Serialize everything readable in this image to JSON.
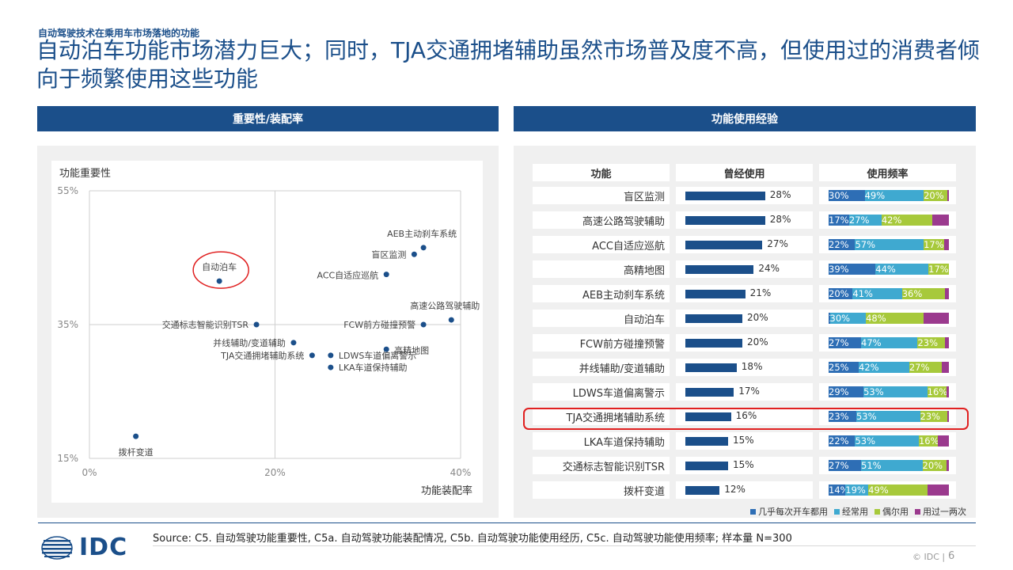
{
  "kicker": "自动驾驶技术在乘用车市场落地的功能",
  "title": "自动泊车功能市场潜力巨大；同时，TJA交通拥堵辅助虽然市场普及度不高，但使用过的消费者倾向于频繁使用这些功能",
  "left_panel": {
    "header": "重要性/装配率"
  },
  "right_panel": {
    "header": "功能使用经验"
  },
  "colors": {
    "brand": "#1b4f8a",
    "seg1": "#2e6eb5",
    "seg2": "#3fa9d0",
    "seg3": "#a7c93b",
    "seg4": "#9b3a8e",
    "highlight": "#e02020"
  },
  "chart_data": [
    {
      "type": "scatter",
      "title": "",
      "ylabel": "功能重要性",
      "xlabel": "功能装配率",
      "xlim": [
        0,
        40
      ],
      "ylim": [
        15,
        55
      ],
      "x_ticks": [
        "0%",
        "20%",
        "40%"
      ],
      "y_ticks": [
        "55%",
        "35%",
        "15%"
      ],
      "quadrant_lines": {
        "x": 20,
        "y": 35
      },
      "points": [
        {
          "label": "AEB主动刹车系统",
          "x": 36,
          "y": 46.5
        },
        {
          "label": "盲区监测",
          "x": 35,
          "y": 45.5
        },
        {
          "label": "ACC自适应巡航",
          "x": 32,
          "y": 42.5
        },
        {
          "label": "自动泊车",
          "x": 14,
          "y": 41.5,
          "highlighted": true
        },
        {
          "label": "高速公路驾驶辅助",
          "x": 39,
          "y": 35.7
        },
        {
          "label": "FCW前方碰撞预警",
          "x": 36,
          "y": 35
        },
        {
          "label": "交通标志智能识别TSR",
          "x": 18,
          "y": 35
        },
        {
          "label": "并线辅助/变道辅助",
          "x": 22,
          "y": 32.3
        },
        {
          "label": "高精地图",
          "x": 32,
          "y": 31.3
        },
        {
          "label": "TJA交通拥堵辅助系统",
          "x": 24,
          "y": 30.4
        },
        {
          "label": "LDWS车道偏离警示",
          "x": 26,
          "y": 30.4
        },
        {
          "label": "LKA车道保持辅助",
          "x": 26,
          "y": 28.6
        },
        {
          "label": "拨杆变道",
          "x": 5,
          "y": 18.3
        }
      ]
    },
    {
      "type": "table",
      "columns": [
        "功能",
        "曾经使用",
        "使用频率"
      ],
      "legend": [
        "几乎每次开车都用",
        "经常用",
        "偶尔用",
        "用过一两次"
      ],
      "rows": [
        {
          "name": "盲区监测",
          "used": 28,
          "used_label": "28%",
          "freq": [
            30,
            49,
            20,
            1
          ],
          "freq_labels": [
            "30%",
            "49%",
            "20%",
            ""
          ]
        },
        {
          "name": "高速公路驾驶辅助",
          "used": 28,
          "used_label": "28%",
          "freq": [
            17,
            27,
            42,
            14
          ],
          "freq_labels": [
            "17%",
            "27%",
            "42%",
            ""
          ]
        },
        {
          "name": "ACC自适应巡航",
          "used": 27,
          "used_label": "27%",
          "freq": [
            22,
            57,
            17,
            4
          ],
          "freq_labels": [
            "22%",
            "57%",
            "17%",
            ""
          ]
        },
        {
          "name": "高精地图",
          "used": 24,
          "used_label": "24%",
          "freq": [
            39,
            44,
            17,
            0
          ],
          "freq_labels": [
            "39%",
            "44%",
            "17%",
            ""
          ]
        },
        {
          "name": "AEB主动刹车系统",
          "used": 21,
          "used_label": "21%",
          "freq": [
            20,
            41,
            36,
            3
          ],
          "freq_labels": [
            "20%",
            "41%",
            "36%",
            ""
          ]
        },
        {
          "name": "自动泊车",
          "used": 20,
          "used_label": "20%",
          "freq": [
            1,
            30,
            48,
            21
          ],
          "freq_labels": [
            "1%",
            "30%",
            "48%",
            ""
          ]
        },
        {
          "name": "FCW前方碰撞预警",
          "used": 20,
          "used_label": "20%",
          "freq": [
            27,
            47,
            23,
            3
          ],
          "freq_labels": [
            "27%",
            "47%",
            "23%",
            ""
          ]
        },
        {
          "name": "并线辅助/变道辅助",
          "used": 18,
          "used_label": "18%",
          "freq": [
            25,
            42,
            27,
            6
          ],
          "freq_labels": [
            "25%",
            "42%",
            "27%",
            ""
          ]
        },
        {
          "name": "LDWS车道偏离警示",
          "used": 17,
          "used_label": "17%",
          "freq": [
            29,
            53,
            16,
            2
          ],
          "freq_labels": [
            "29%",
            "53%",
            "16%",
            ""
          ]
        },
        {
          "name": "TJA交通拥堵辅助系统",
          "used": 16,
          "used_label": "16%",
          "freq": [
            23,
            53,
            23,
            1
          ],
          "freq_labels": [
            "23%",
            "53%",
            "23%",
            ""
          ],
          "highlighted": true
        },
        {
          "name": "LKA车道保持辅助",
          "used": 15,
          "used_label": "15%",
          "freq": [
            22,
            53,
            16,
            9
          ],
          "freq_labels": [
            "22%",
            "53%",
            "16%",
            ""
          ]
        },
        {
          "name": "交通标志智能识别TSR",
          "used": 15,
          "used_label": "15%",
          "freq": [
            27,
            51,
            20,
            2
          ],
          "freq_labels": [
            "27%",
            "51%",
            "20%",
            ""
          ]
        },
        {
          "name": "拨杆变道",
          "used": 12,
          "used_label": "12%",
          "freq": [
            14,
            19,
            49,
            18
          ],
          "freq_labels": [
            "14%",
            "19%",
            "49%",
            ""
          ]
        }
      ]
    }
  ],
  "footer": {
    "source": "Source: C5. 自动驾驶功能重要性, C5a. 自动驾驶功能装配情况, C5b. 自动驾驶功能使用经历, C5c. 自动驾驶功能使用频率; 样本量 N=300",
    "logo": "IDC",
    "copyright": "© IDC |",
    "page": "6"
  }
}
